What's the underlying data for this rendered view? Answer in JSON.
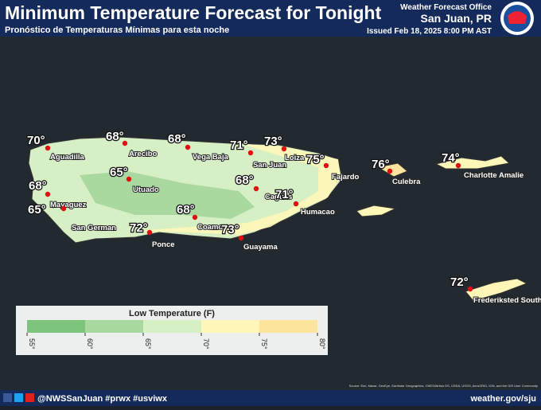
{
  "header": {
    "title": "Minimum Temperature Forecast for Tonight",
    "subtitle": "Pronóstico de Temperaturas Mínimas para esta noche",
    "office": "Weather Forecast Office",
    "location": "San Juan, PR",
    "issued": "Issued Feb 18, 2025 8:00 PM AST"
  },
  "cities": [
    {
      "temp": "70°",
      "name": "Aguadilla"
    },
    {
      "temp": "68°",
      "name": "Arecibo"
    },
    {
      "temp": "68°",
      "name": "Vega Baja"
    },
    {
      "temp": "71°",
      "name": "San Juan"
    },
    {
      "temp": "73°",
      "name": "Loiza"
    },
    {
      "temp": "75°",
      "name": "Fajardo"
    },
    {
      "temp": "65°",
      "name": "Utuado"
    },
    {
      "temp": "68°",
      "name": "Mayaguez"
    },
    {
      "temp": "65°",
      "name": "San German"
    },
    {
      "temp": "68°",
      "name": "Caguas"
    },
    {
      "temp": "71°",
      "name": "Humacao"
    },
    {
      "temp": "68°",
      "name": "Coamo"
    },
    {
      "temp": "72°",
      "name": "Ponce"
    },
    {
      "temp": "73°",
      "name": "Guayama"
    },
    {
      "temp": "76°",
      "name": "Culebra"
    },
    {
      "temp": "74°",
      "name": "Charlotte Amalie"
    },
    {
      "temp": "72°",
      "name": "Frederiksted South"
    }
  ],
  "legend": {
    "title": "Low Temperature (F)",
    "colors": [
      "#7cc47c",
      "#a9d99f",
      "#d6efc4",
      "#fff6b8",
      "#fde49c"
    ],
    "ticks": [
      "55°",
      "60°",
      "65°",
      "70°",
      "75°",
      "80°"
    ]
  },
  "source": "Source: Esri, Maxar, GeoEye, Earthstar Geographics, CNES/Airbus DS, USDA, USGS, AeroGRID, IGN, and the GIS User Community",
  "footer": {
    "social": "@NWSSanJuan #prwx #usviwx",
    "url": "weather.gov/sju"
  }
}
